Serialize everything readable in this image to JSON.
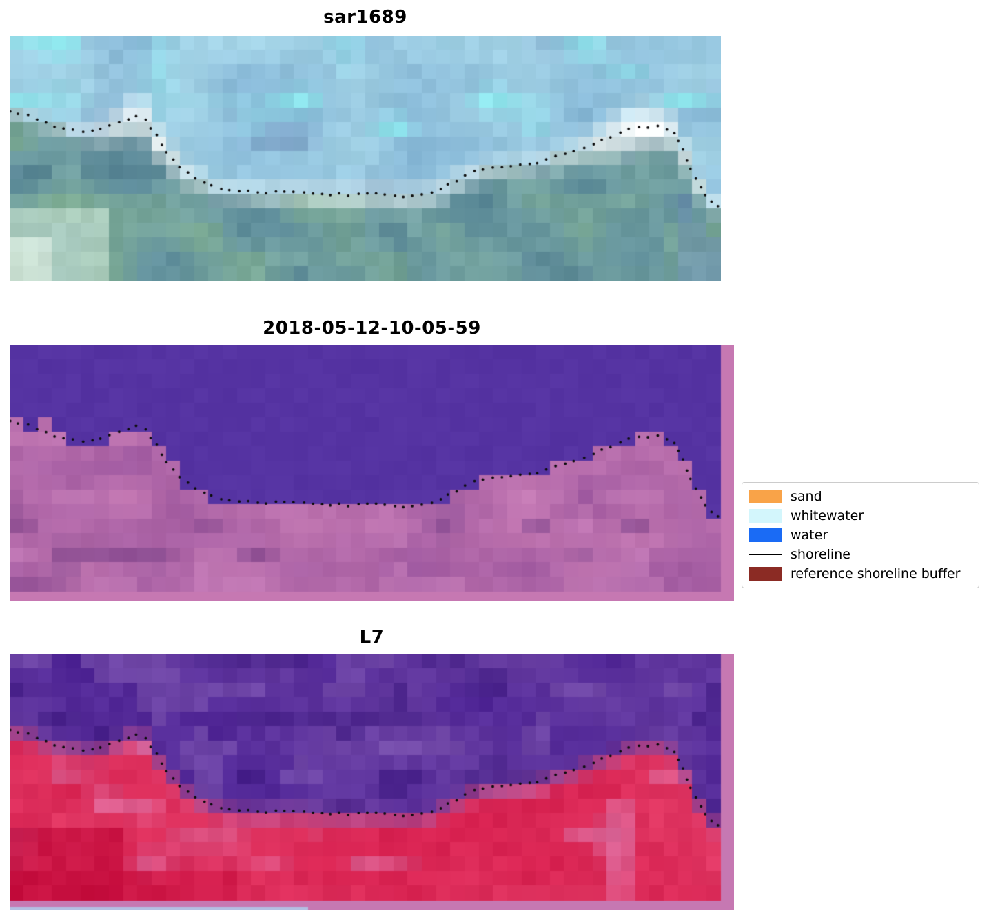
{
  "figure": {
    "background_color": "#ffffff",
    "panels": [
      {
        "title": "sar1689"
      },
      {
        "title": "2018-05-12-10-05-59"
      },
      {
        "title": "L7"
      }
    ],
    "legend": {
      "items": [
        {
          "label": "sand",
          "swatch": "patch",
          "color": "#f9a348"
        },
        {
          "label": "whitewater",
          "swatch": "patch",
          "color": "#d3f6fc"
        },
        {
          "label": "water",
          "swatch": "patch",
          "color": "#1a6bf5"
        },
        {
          "label": "shoreline",
          "swatch": "line",
          "color": "#000000"
        },
        {
          "label": "reference shoreline buffer",
          "swatch": "patch",
          "color": "#8b2b24"
        }
      ]
    }
  },
  "chart_data": {
    "type": "heatmap",
    "description": "Three-panel coastal satellite figure: SAR image (sar1689), classified output (2018-05-12-10-05-59) and Landsat-7 (L7) image, each overlaid with the detected shoreline as black dots; pink tint marks the reference shoreline buffer.",
    "subplots": [
      {
        "title": "sar1689",
        "content": "SAR RGB image: cyan-blue water at top, bright whitewater band along the coast, teal-green sea/land below, black dotted detected shoreline",
        "palette": {
          "sky_blue": "#86b7d6",
          "sky_light": "#a6d6e8",
          "cyan_patch": "#8df0f2",
          "slate": "#7090ba",
          "foam_white": "#ffffff",
          "foam_light": "#d9e9ea",
          "sea_teal": "#5d8c9b",
          "sea_teal_light": "#7aa9a3",
          "sea_green": "#7fae8e",
          "sea_dark": "#4f7b8f",
          "shore_pale": "#d9eedd"
        }
      },
      {
        "title": "2018-05-12-10-05-59",
        "content": "Classified image: uniform purple = water class, mottled pink = land side of reference shoreline buffer, black dotted shoreline along the class boundary",
        "palette": {
          "water_purple": "#5533a2",
          "buffer_pink_light": "#c478b2",
          "buffer_pink_dark": "#9c569e",
          "buffer_mauve_dark": "#84488e",
          "buffer_pink_pale": "#cd84bd",
          "border_pink": "#c678b2"
        }
      },
      {
        "title": "L7",
        "content": "Landsat-7 false-colour image: dark purple water, crimson-red land with pink patches, deep red lower-left corner, black dotted shoreline",
        "palette": {
          "deep_purple": "#4f2596",
          "purple_light": "#6b41a4",
          "purple_patch": "#7b53ae",
          "purple_dark": "#3f1b82",
          "red": "#d8204f",
          "red_bright": "#e23a66",
          "pink_patch": "#dd71a4",
          "deep_red": "#c00536",
          "mid_magenta": "#c25d9b",
          "border_pink": "#c678b2",
          "bottom_sliver_blue": "#b3bfe2"
        }
      }
    ],
    "shoreline_normalized": [
      [
        0.0,
        0.31
      ],
      [
        0.03,
        0.33
      ],
      [
        0.07,
        0.375
      ],
      [
        0.11,
        0.39
      ],
      [
        0.13,
        0.385
      ],
      [
        0.155,
        0.35
      ],
      [
        0.175,
        0.325
      ],
      [
        0.19,
        0.335
      ],
      [
        0.21,
        0.43
      ],
      [
        0.23,
        0.5
      ],
      [
        0.25,
        0.56
      ],
      [
        0.27,
        0.59
      ],
      [
        0.29,
        0.62
      ],
      [
        0.32,
        0.635
      ],
      [
        0.36,
        0.64
      ],
      [
        0.4,
        0.635
      ],
      [
        0.44,
        0.645
      ],
      [
        0.48,
        0.65
      ],
      [
        0.52,
        0.648
      ],
      [
        0.56,
        0.655
      ],
      [
        0.6,
        0.64
      ],
      [
        0.62,
        0.6
      ],
      [
        0.645,
        0.565
      ],
      [
        0.665,
        0.545
      ],
      [
        0.69,
        0.535
      ],
      [
        0.715,
        0.527
      ],
      [
        0.74,
        0.52
      ],
      [
        0.765,
        0.5
      ],
      [
        0.79,
        0.475
      ],
      [
        0.82,
        0.44
      ],
      [
        0.845,
        0.41
      ],
      [
        0.868,
        0.385
      ],
      [
        0.888,
        0.373
      ],
      [
        0.908,
        0.37
      ],
      [
        0.925,
        0.378
      ],
      [
        0.938,
        0.41
      ],
      [
        0.948,
        0.47
      ],
      [
        0.958,
        0.54
      ],
      [
        0.968,
        0.6
      ],
      [
        0.982,
        0.66
      ],
      [
        0.995,
        0.695
      ]
    ],
    "pink_islands": [
      [
        0.059,
        0.3
      ]
    ],
    "shoreline_dot_spacing_px": 13,
    "grid": {
      "cols": 50,
      "rows": 17
    },
    "legend_entries": [
      "sand",
      "whitewater",
      "water",
      "shoreline",
      "reference shoreline buffer"
    ]
  }
}
